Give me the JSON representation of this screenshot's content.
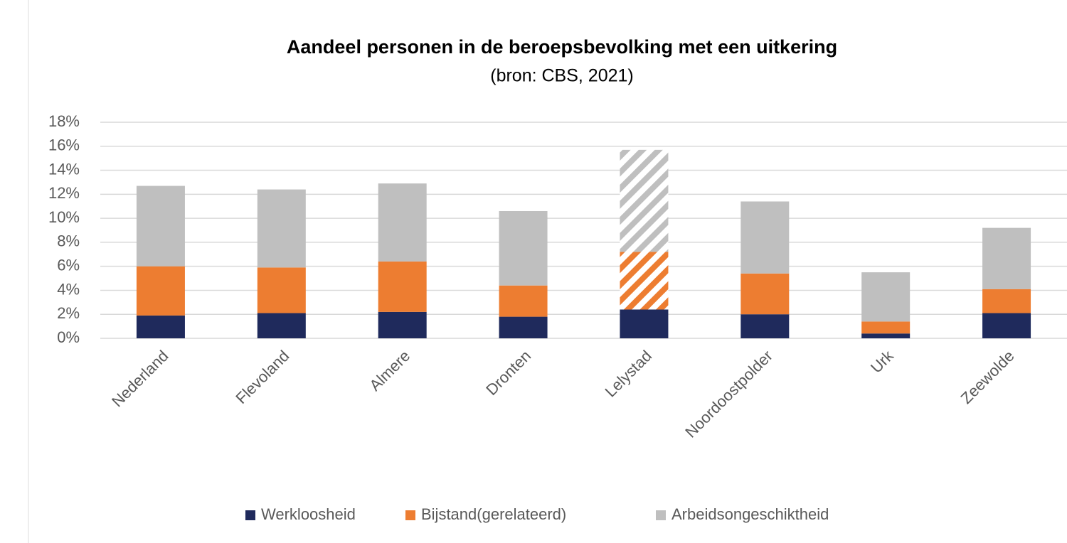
{
  "chart_data": {
    "type": "stacked_bar",
    "title": "Aandeel personen in de beroepsbevolking met een uitkering",
    "subtitle": "(bron: CBS, 2021)",
    "categories": [
      "Nederland",
      "Flevoland",
      "Almere",
      "Dronten",
      "Lelystad",
      "Noordoostpolder",
      "Urk",
      "Zeewolde"
    ],
    "series": [
      {
        "name": "Werkloosheid",
        "color": "#1f2a5c",
        "values": [
          1.9,
          2.1,
          2.2,
          1.8,
          2.4,
          2.0,
          0.4,
          2.1
        ]
      },
      {
        "name": "Bijstand(gerelateerd)",
        "color": "#ed7d31",
        "values": [
          4.1,
          3.8,
          4.2,
          2.6,
          4.8,
          3.4,
          1.0,
          2.0
        ]
      },
      {
        "name": "Arbeidsongeschiktheid",
        "color": "#bfbfbf",
        "values": [
          6.7,
          6.5,
          6.5,
          6.2,
          8.5,
          6.0,
          4.1,
          5.1
        ]
      }
    ],
    "hatched_category": "Lelystad",
    "ylim": [
      0,
      18
    ],
    "yticks": [
      {
        "value": 0,
        "label": "0%"
      },
      {
        "value": 2,
        "label": "2%"
      },
      {
        "value": 4,
        "label": "4%"
      },
      {
        "value": 6,
        "label": "6%"
      },
      {
        "value": 8,
        "label": "8%"
      },
      {
        "value": 10,
        "label": "10%"
      },
      {
        "value": 12,
        "label": "12%"
      },
      {
        "value": 14,
        "label": "14%"
      },
      {
        "value": 16,
        "label": "16%"
      },
      {
        "value": 18,
        "label": "18%"
      }
    ],
    "grid": true,
    "legend": "bottom"
  }
}
